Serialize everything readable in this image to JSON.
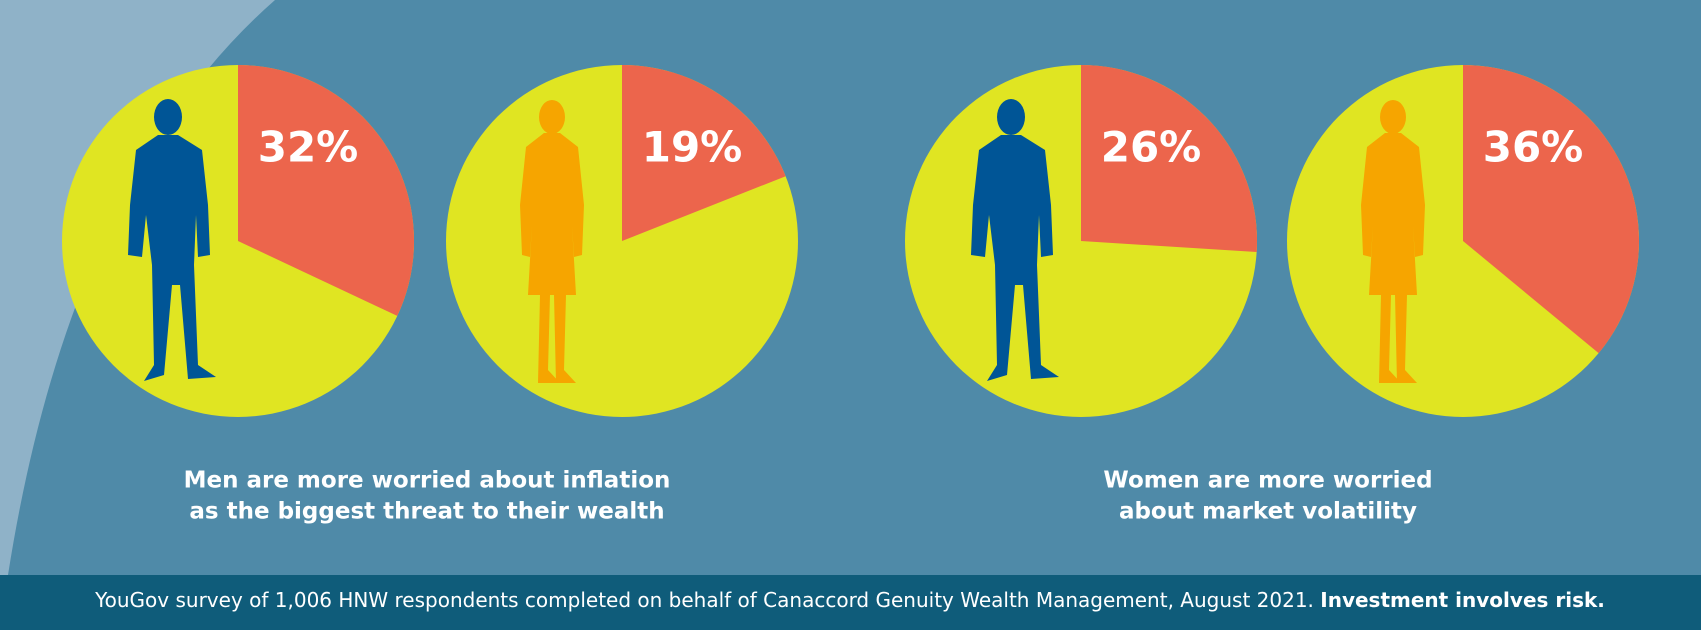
{
  "chart_data": [
    {
      "type": "pie",
      "values": [
        32
      ],
      "value_labels": [
        "32%"
      ],
      "color": "#ec654c"
    },
    {
      "type": "pie",
      "values": [
        19
      ],
      "value_labels": [
        "19%"
      ],
      "color": "#ec654c"
    },
    {
      "type": "pie",
      "values": [
        26
      ],
      "value_labels": [
        "26%"
      ],
      "color": "#ec654c"
    },
    {
      "type": "pie",
      "values": [
        36
      ],
      "value_labels": [
        "36%"
      ],
      "color": "#ec654c"
    }
  ],
  "captions": [
    [
      "Men are more worried about inflation",
      "as the biggest threat to their wealth"
    ],
    [
      "Women are more worried",
      "about market volatility"
    ]
  ],
  "footer": {
    "text": "YouGov survey of 1,006 HNW respondents completed on behalf of Canaccord Genuity Wealth Management, August 2021.",
    "bold": "Investment involves risk."
  }
}
